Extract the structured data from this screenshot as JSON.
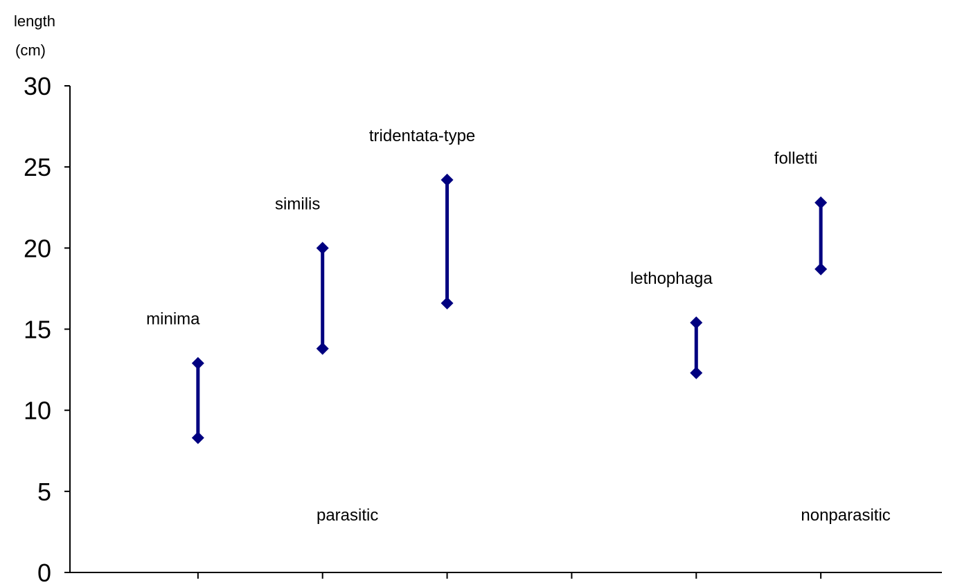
{
  "chart_data": {
    "type": "range",
    "ylabel": [
      "length",
      "(cm)"
    ],
    "ylim": [
      0,
      30
    ],
    "yticks": [
      0,
      5,
      10,
      15,
      20,
      25,
      30
    ],
    "x_slots": 7,
    "series": [
      {
        "name": "minima",
        "x": 1,
        "low": 8.3,
        "high": 12.9
      },
      {
        "name": "similis",
        "x": 2,
        "low": 13.8,
        "high": 20.0
      },
      {
        "name": "tridentata-type",
        "x": 3,
        "low": 16.6,
        "high": 24.2
      },
      {
        "name": "lethophaga",
        "x": 5,
        "low": 12.3,
        "high": 15.4
      },
      {
        "name": "folletti",
        "x": 6,
        "low": 18.7,
        "high": 22.8
      }
    ],
    "annotations": [
      {
        "text": "parasitic",
        "x": 2.2,
        "y": 3.2
      },
      {
        "text": "nonparasitic",
        "x": 6.2,
        "y": 3.2
      }
    ],
    "colors": {
      "series": "#000080",
      "axis": "#000000"
    }
  }
}
